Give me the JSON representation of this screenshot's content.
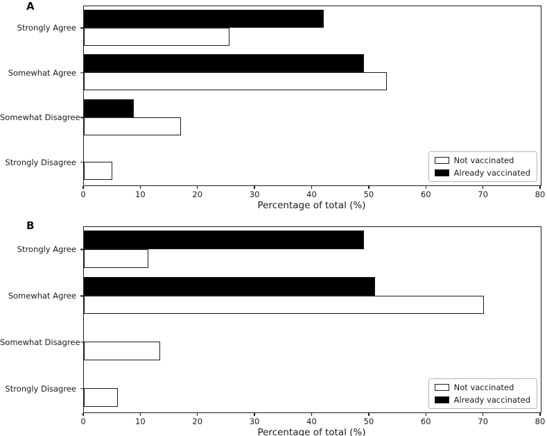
{
  "colors": {
    "edge": "#1a1a1a",
    "text": "#1a1a1a",
    "background": "#ffffff",
    "legend_border": "#b5b5b5"
  },
  "chart_data": [
    {
      "type": "bar",
      "panel_label": "A",
      "orientation": "horizontal",
      "categories": [
        "Strongly Agree",
        "Somewhat Agree",
        "Somewhat Disagree",
        "Strongly Disagree"
      ],
      "series": [
        {
          "name": "Not vaccinated",
          "fill": "#ffffff",
          "values": [
            25.5,
            53,
            17,
            5
          ]
        },
        {
          "name": "Already vaccinated",
          "fill": "#000000",
          "values": [
            42,
            49,
            8.7,
            0
          ]
        }
      ],
      "xlabel": "Percentage of total (%)",
      "ylabel": "",
      "xlim": [
        0,
        80
      ],
      "x_ticks": [
        0,
        10,
        20,
        30,
        40,
        50,
        60,
        70,
        80
      ],
      "grid": false,
      "legend_position": "lower right",
      "legend_entries": [
        "Not vaccinated",
        "Already vaccinated"
      ]
    },
    {
      "type": "bar",
      "panel_label": "B",
      "orientation": "horizontal",
      "categories": [
        "Strongly Agree",
        "Somewhat Agree",
        "Somewhat Disagree",
        "Strongly Disagree"
      ],
      "series": [
        {
          "name": "Not vaccinated",
          "fill": "#ffffff",
          "values": [
            11.3,
            70,
            13.3,
            6
          ]
        },
        {
          "name": "Already vaccinated",
          "fill": "#000000",
          "values": [
            49,
            51,
            0,
            0
          ]
        }
      ],
      "xlabel": "Percentage of total (%)",
      "ylabel": "",
      "xlim": [
        0,
        80
      ],
      "x_ticks": [
        0,
        10,
        20,
        30,
        40,
        50,
        60,
        70,
        80
      ],
      "grid": false,
      "legend_position": "lower right",
      "legend_entries": [
        "Not vaccinated",
        "Already vaccinated"
      ]
    }
  ]
}
